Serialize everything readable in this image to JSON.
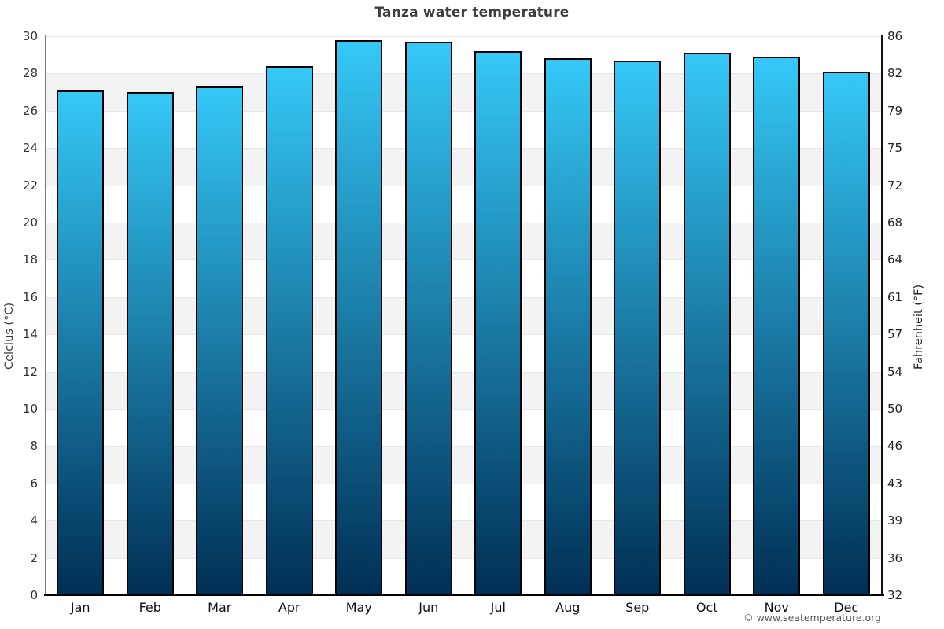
{
  "page": {
    "title": "Tanza water temperature",
    "copyright": "© www.seatemperature.org"
  },
  "chart_data": {
    "type": "bar",
    "title": "Tanza water temperature",
    "categories": [
      "Jan",
      "Feb",
      "Mar",
      "Apr",
      "May",
      "Jun",
      "Jul",
      "Aug",
      "Sep",
      "Oct",
      "Nov",
      "Dec"
    ],
    "values": [
      27.1,
      27.0,
      27.3,
      28.4,
      29.8,
      29.7,
      29.2,
      28.8,
      28.7,
      29.1,
      28.9,
      28.1
    ],
    "value_unit": "°C",
    "ylabel_left": "Celcius (°C)",
    "ylabel_right": "Fahrenheit (°F)",
    "ylim_left": [
      0,
      30
    ],
    "yticks_left": [
      0,
      2,
      4,
      6,
      8,
      10,
      12,
      14,
      16,
      18,
      20,
      22,
      24,
      26,
      28,
      30
    ],
    "yticks_right_labels": [
      "32",
      "36",
      "39",
      "43",
      "46",
      "50",
      "54",
      "57",
      "61",
      "64",
      "68",
      "72",
      "75",
      "79",
      "82",
      "86"
    ],
    "grid": "alternating gray/white horizontal bands every 2°C with light gridlines",
    "legend_position": "none",
    "colors": {
      "bar_top": "#35c8f7",
      "bar_bottom": "#002f55",
      "bar_border": "#000000",
      "band_gray": "#f3f3f3",
      "band_white": "#ffffff",
      "gridline": "#e7e7e7",
      "title_text": "#3d3d3d",
      "tick_text": "#333333",
      "month_text": "#111111",
      "footer_text": "#555555"
    }
  }
}
